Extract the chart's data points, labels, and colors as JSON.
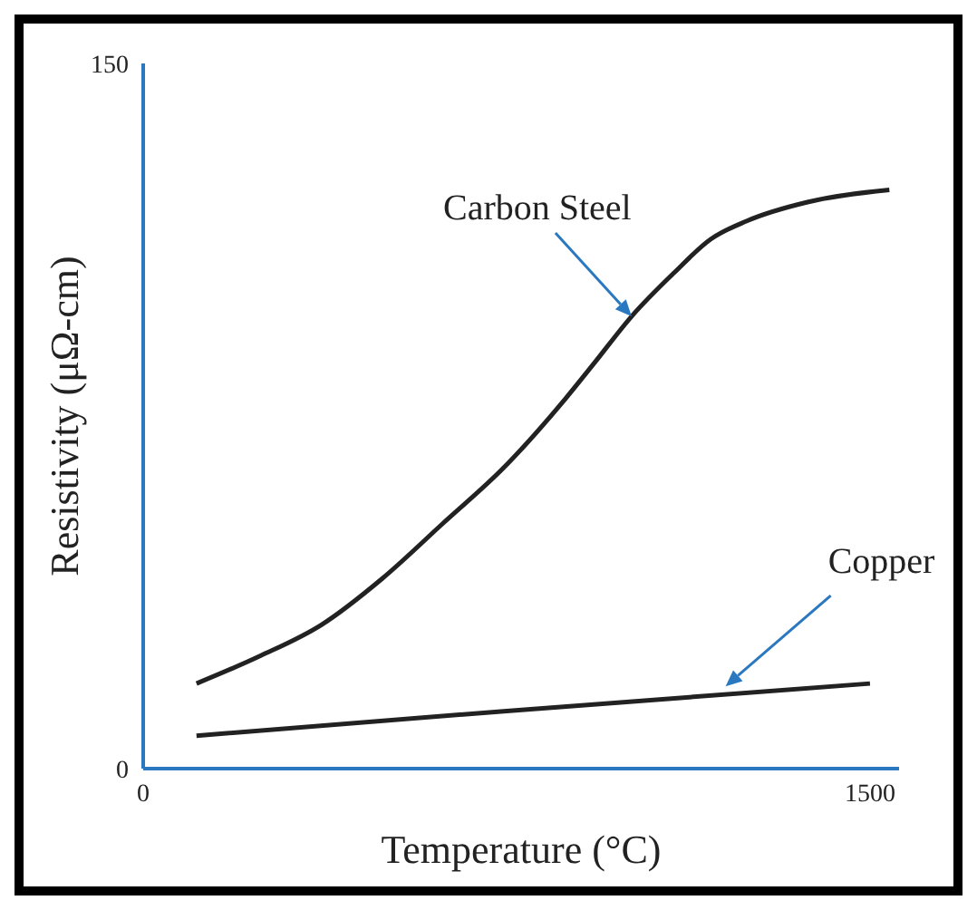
{
  "chart_data": {
    "type": "line",
    "xlabel": "Temperature (°C)",
    "ylabel": "Resistivity (μΩ-cm)",
    "xlim": [
      0,
      1560
    ],
    "xticks": [
      0,
      1500
    ],
    "ylim": [
      0,
      150
    ],
    "yticks": [
      0,
      150
    ],
    "grid": false,
    "marker": "none",
    "line_style": "solid",
    "series": [
      {
        "color": "#222222",
        "x": [
          110,
          242,
          368,
          493,
          619,
          744,
          870,
          932,
          1008,
          1095,
          1171,
          1246,
          1371,
          1540
        ],
        "values": [
          18.1,
          24.0,
          30.6,
          40.4,
          52.2,
          64.0,
          78.5,
          86.4,
          96.2,
          105.4,
          112.6,
          116.5,
          120.5,
          123.1
        ]
      },
      {
        "color": "#222222",
        "x": [
          110,
          744,
          1500
        ],
        "values": [
          7.0,
          12.2,
          18.1
        ]
      }
    ],
    "annotations": [
      {
        "text": "Carbon Steel",
        "x": 1008,
        "y": 96.2
      },
      {
        "text": "Copper",
        "x": 1202,
        "y": 17.5
      }
    ]
  }
}
